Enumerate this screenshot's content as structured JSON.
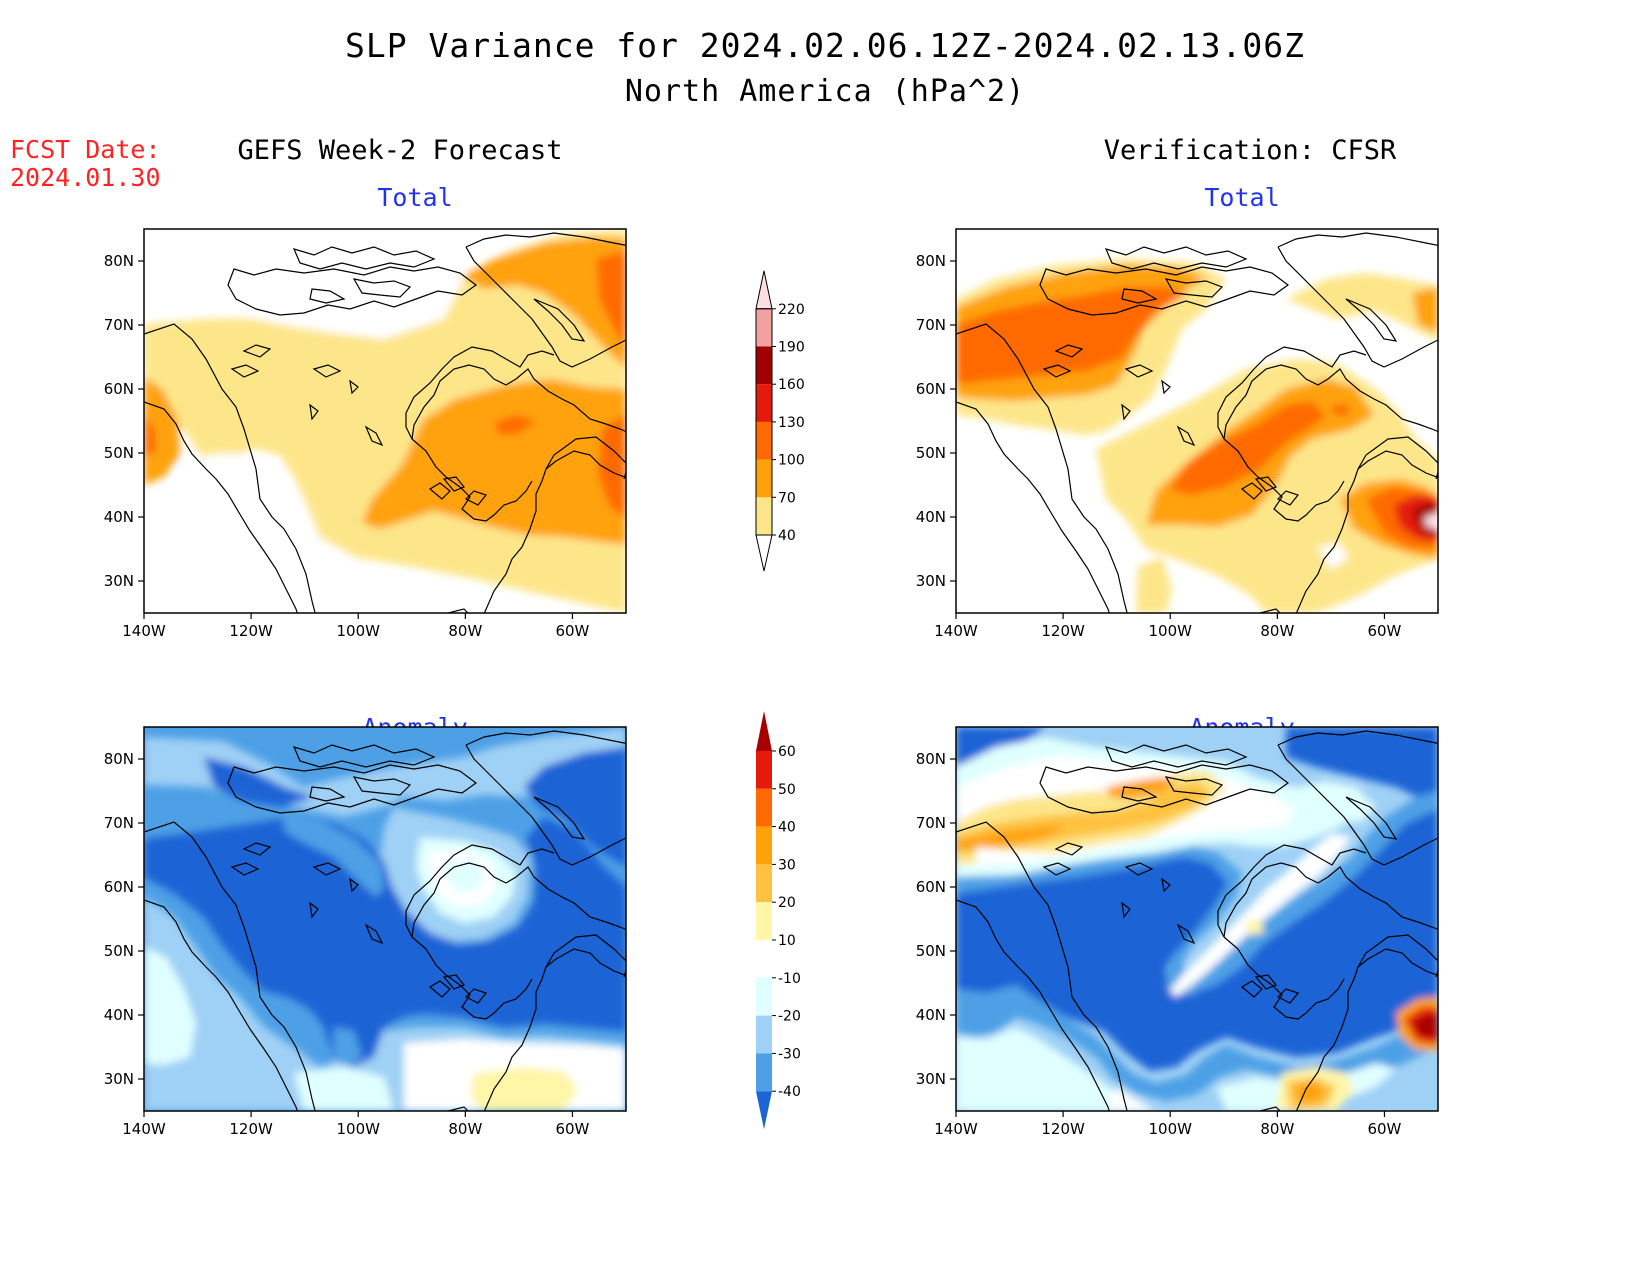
{
  "title": "SLP Variance for 2024.02.06.12Z-2024.02.13.06Z",
  "subtitle": "North America (hPa^2)",
  "fcst_label": "FCST Date:",
  "fcst_date": "2024.01.30",
  "columns": {
    "left": "GEFS Week-2 Forecast",
    "right": "Verification: CFSR"
  },
  "rows": {
    "top": "Total",
    "bottom": "Anomaly"
  },
  "axes": {
    "lat_ticks": [
      "80N",
      "70N",
      "60N",
      "50N",
      "40N",
      "30N"
    ],
    "lon_ticks": [
      "140W",
      "120W",
      "100W",
      "80W",
      "60W"
    ]
  },
  "colorbar_total": {
    "levels": [
      "40",
      "70",
      "100",
      "130",
      "160",
      "190",
      "220"
    ],
    "colors": [
      "#fde68a",
      "#ffa20a",
      "#ff6a00",
      "#e41a0c",
      "#a00000",
      "#f2a0a0",
      "#fce0e0"
    ]
  },
  "colorbar_anomaly": {
    "levels": [
      "60",
      "50",
      "40",
      "30",
      "20",
      "10",
      "-10",
      "-20",
      "-30",
      "-40"
    ],
    "colors": [
      "#a80000",
      "#e41a0c",
      "#ff6a00",
      "#ffa20a",
      "#ffc240",
      "#fff6a8",
      "#ffffff",
      "#e0ffff",
      "#9fd0f5",
      "#4ea0e6",
      "#1c64d6"
    ]
  },
  "chart_data": [
    {
      "type": "heatmap",
      "title": "Total",
      "panel": "GEFS Week-2 Forecast",
      "units": "hPa^2",
      "xlim": [
        "140W",
        "50W"
      ],
      "ylim": [
        "25N",
        "85N"
      ],
      "features": [
        {
          "region": "Ontario / Quebec / Great Lakes",
          "level": "70-100"
        },
        {
          "region": "Labrador Sea / Greenland",
          "level": "70-100"
        },
        {
          "region": "Gulf of Alaska",
          "level": "70-100"
        },
        {
          "region": "Hudson Bay / Canada north of 60N",
          "level": "40-70"
        }
      ]
    },
    {
      "type": "heatmap",
      "title": "Total",
      "panel": "Verification: CFSR",
      "units": "hPa^2",
      "xlim": [
        "140W",
        "50W"
      ],
      "ylim": [
        "25N",
        "85N"
      ],
      "features": [
        {
          "region": "Alaska / Yukon",
          "level": "100-130"
        },
        {
          "region": "Great Lakes / Ontario",
          "level": "100-130"
        },
        {
          "region": "off Nova Scotia",
          "level": "190-220"
        }
      ]
    },
    {
      "type": "heatmap",
      "title": "Anomaly",
      "panel": "GEFS Week-2 Forecast",
      "units": "hPa^2",
      "xlim": [
        "140W",
        "50W"
      ],
      "ylim": [
        "25N",
        "85N"
      ],
      "features": [
        {
          "region": "most of domain",
          "level": "-40 to -30"
        },
        {
          "region": "Hudson Bay",
          "level": "-10 to 10"
        },
        {
          "region": "southeast US / Gulf",
          "level": "10-20"
        }
      ]
    },
    {
      "type": "heatmap",
      "title": "Anomaly",
      "panel": "Verification: CFSR",
      "units": "hPa^2",
      "xlim": [
        "140W",
        "50W"
      ],
      "ylim": [
        "25N",
        "85N"
      ],
      "features": [
        {
          "region": "Alaska / Arctic islands",
          "level": "30-40"
        },
        {
          "region": "central Canada / US",
          "level": "< -40"
        },
        {
          "region": "off Nova Scotia",
          "level": "> 50"
        },
        {
          "region": "Florida",
          "level": "30-40"
        }
      ]
    }
  ]
}
